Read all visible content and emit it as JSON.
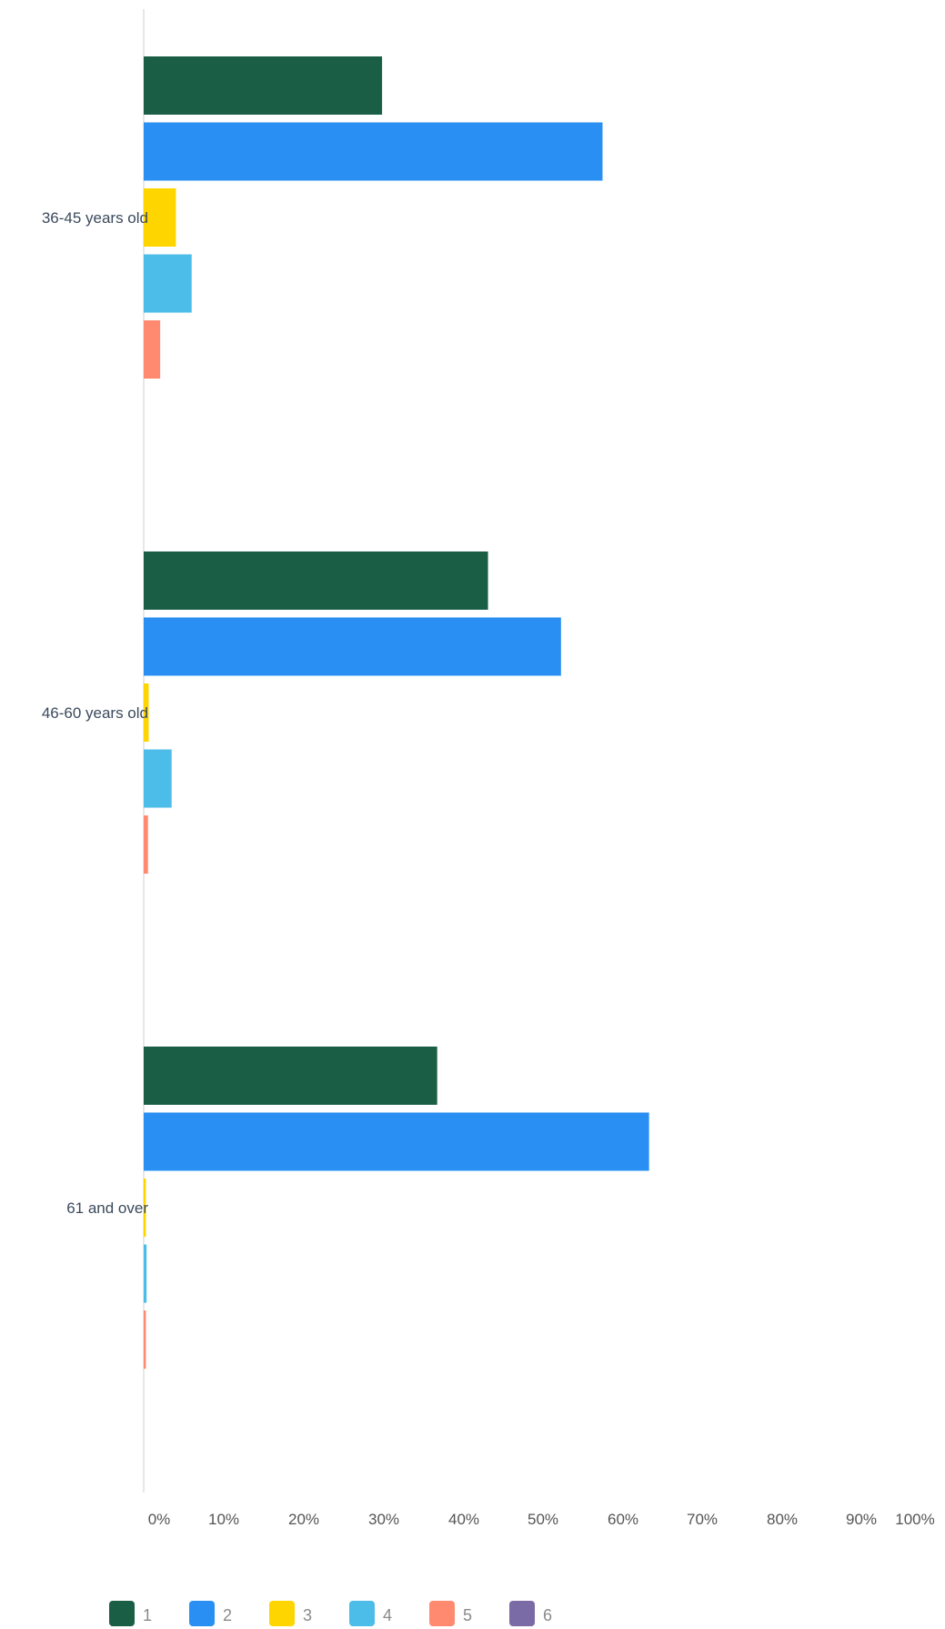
{
  "chart_data": {
    "type": "bar",
    "orientation": "horizontal",
    "categories": [
      "36-45 years old",
      "46-60 years old",
      "61 and over"
    ],
    "series": [
      {
        "name": "1",
        "color": "#1a5e46",
        "values": [
          33.3,
          48.1,
          41.0
        ]
      },
      {
        "name": "2",
        "color": "#2a8ff2",
        "values": [
          64.1,
          58.3,
          70.6
        ]
      },
      {
        "name": "3",
        "color": "#ffd500",
        "values": [
          4.5,
          0.7,
          0.3
        ]
      },
      {
        "name": "4",
        "color": "#4cbde8",
        "values": [
          6.7,
          3.9,
          0.4
        ]
      },
      {
        "name": "5",
        "color": "#ff8a70",
        "values": [
          2.3,
          0.6,
          0.3
        ]
      },
      {
        "name": "6",
        "color": "#7a6aa6",
        "values": [
          0,
          0,
          0
        ]
      }
    ],
    "xticks": [
      "0%",
      "10%",
      "20%",
      "30%",
      "40%",
      "50%",
      "60%",
      "70%",
      "80%",
      "90%",
      "100%"
    ],
    "xlim": [
      0,
      100
    ],
    "legend_position": "bottom-left",
    "grid": false
  }
}
